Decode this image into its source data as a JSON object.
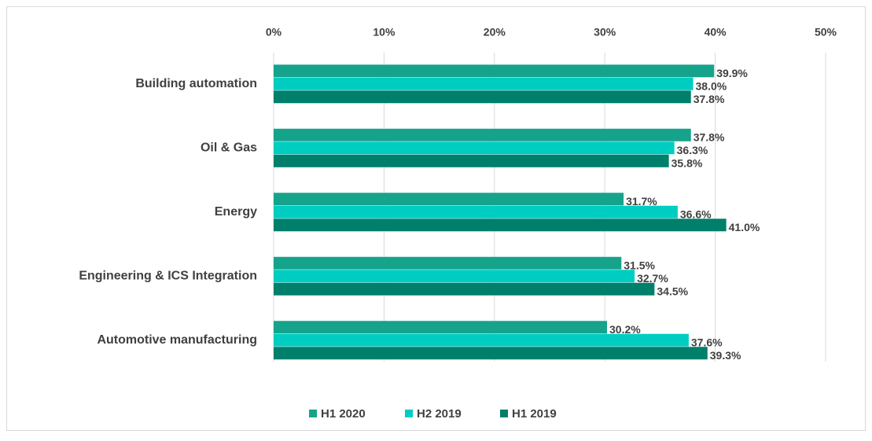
{
  "chart_data": {
    "type": "bar",
    "orientation": "horizontal",
    "categories": [
      "Building automation",
      "Oil & Gas",
      "Energy",
      "Engineering & ICS Integration",
      "Automotive manufacturing"
    ],
    "series": [
      {
        "name": "H1 2020",
        "color": "#16a38b",
        "values": [
          39.9,
          37.8,
          31.7,
          31.5,
          30.2
        ],
        "value_labels": [
          "39.9%",
          "37.8%",
          "31.7%",
          "31.5%",
          "30.2%"
        ]
      },
      {
        "name": "H2 2019",
        "color": "#00cdc1",
        "values": [
          38.0,
          36.3,
          36.6,
          32.7,
          37.6
        ],
        "value_labels": [
          "38.0%",
          "36.3%",
          "36.6%",
          "32.7%",
          "37.6%"
        ]
      },
      {
        "name": "H1 2019",
        "color": "#007f6b",
        "values": [
          37.8,
          35.8,
          41.0,
          34.5,
          39.3
        ],
        "value_labels": [
          "37.8%",
          "35.8%",
          "41.0%",
          "34.5%",
          "39.3%"
        ]
      }
    ],
    "xlim": [
      0,
      50
    ],
    "xticks": [
      {
        "value": 0,
        "label": "0%"
      },
      {
        "value": 10,
        "label": "10%"
      },
      {
        "value": 20,
        "label": "20%"
      },
      {
        "value": 30,
        "label": "30%"
      },
      {
        "value": 40,
        "label": "40%"
      },
      {
        "value": 50,
        "label": "50%"
      }
    ],
    "grid": true,
    "legend": "bottom"
  }
}
